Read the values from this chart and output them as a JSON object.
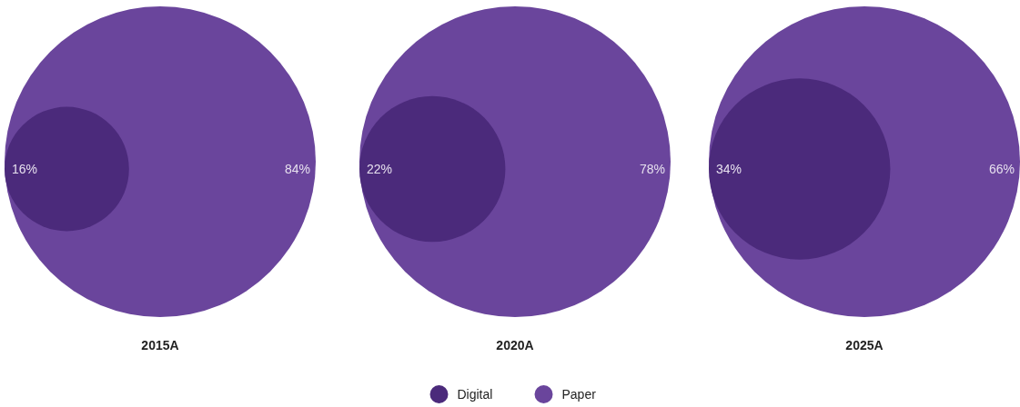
{
  "chart_data": {
    "type": "other",
    "categories": [
      "2015A",
      "2020A",
      "2025A"
    ],
    "legend": "bottom",
    "series": [
      {
        "name": "Digital",
        "color": "#4b2a7b",
        "values": [
          16,
          22,
          34
        ],
        "value_labels": [
          "16%",
          "22%",
          "34%"
        ]
      },
      {
        "name": "Paper",
        "color": "#6a459c",
        "values": [
          84,
          78,
          66
        ],
        "value_labels": [
          "84%",
          "78%",
          "66%"
        ]
      }
    ]
  }
}
